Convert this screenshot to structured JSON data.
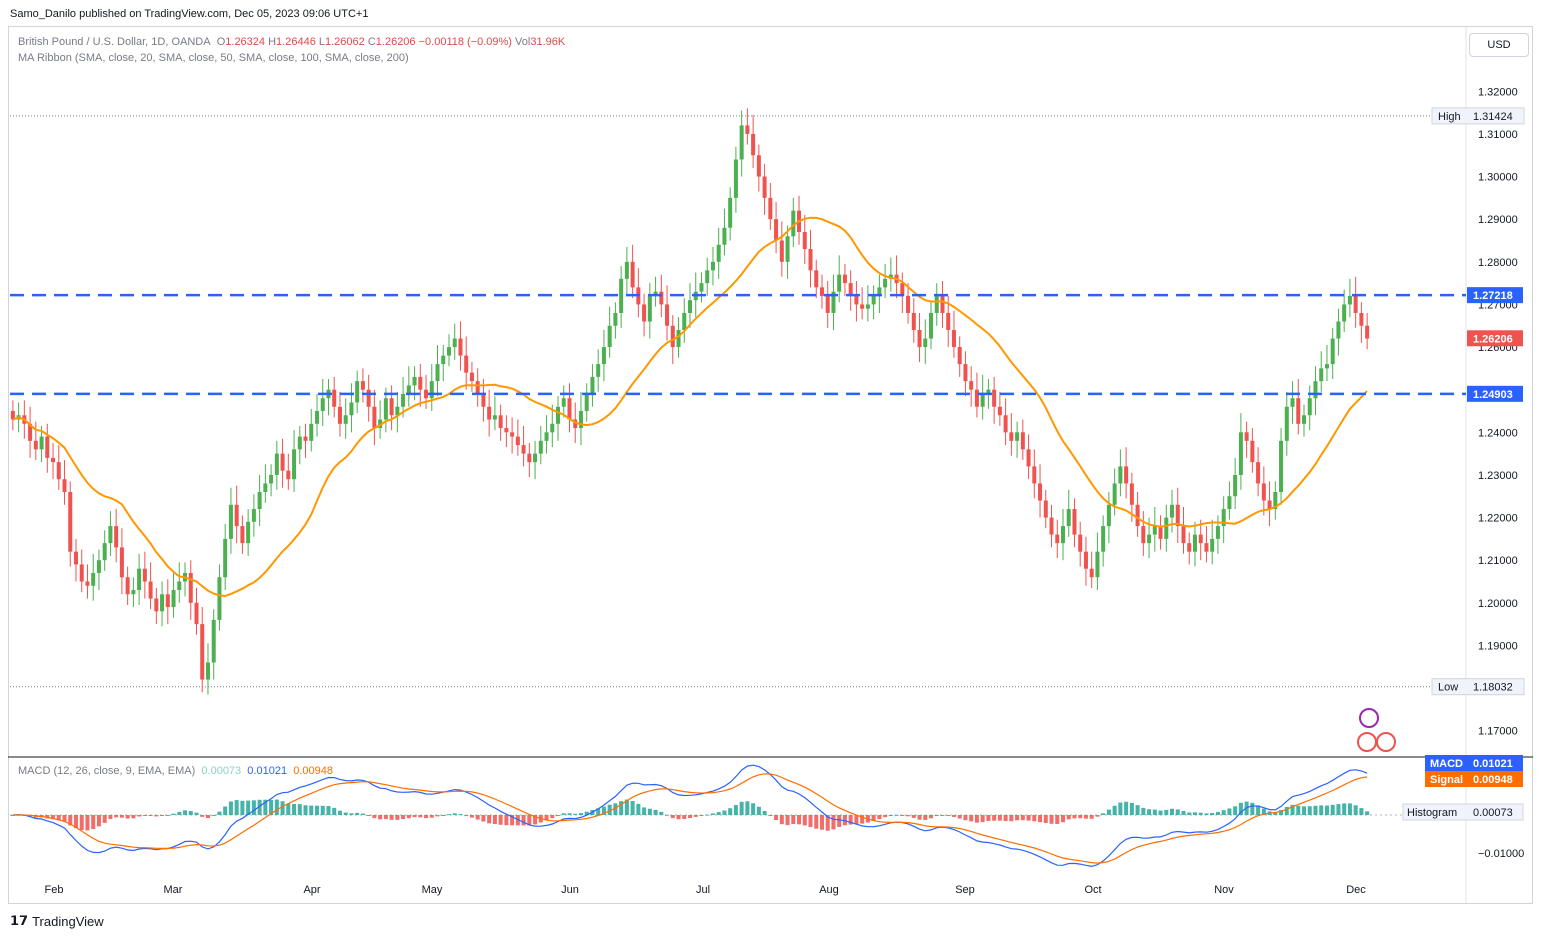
{
  "header": {
    "published": "Samo_Danilo published on TradingView.com, Dec 05, 2023 09:06 UTC+1"
  },
  "legend": {
    "symbol": "British Pound / U.S. Dollar, 1D, OANDA",
    "o_label": "O",
    "o": "1.26324",
    "h_label": "H",
    "h": "1.26446",
    "l_label": "L",
    "l": "1.26062",
    "c_label": "C",
    "c": "1.26206",
    "chg": "−0.00118 (−0.09%)",
    "vol_label": "Vol",
    "vol": "31.96K",
    "ma": "MA Ribbon (SMA, close, 20, SMA, close, 50, SMA, close, 100, SMA, close, 200)",
    "macd": "MACD (12, 26, close, 9, EMA, EMA)",
    "macd_hist": "0.00073",
    "macd_val": "0.01021",
    "macd_sig": "0.00948"
  },
  "currency": "USD",
  "footer": {
    "brand": "TradingView"
  },
  "colors": {
    "up": "#4caf50",
    "down": "#ef5350",
    "ma": "#ff9800",
    "macd": "#2962ff",
    "signal": "#ff6d00",
    "level": "#2962ff",
    "last": "#ef5350",
    "hist_up": "#26a69a",
    "hist_down": "#ef5350"
  },
  "chart_data": {
    "type": "line",
    "price_axis": {
      "ticks": [
        "1.32000",
        "1.31000",
        "1.30000",
        "1.29000",
        "1.28000",
        "1.27000",
        "1.26000",
        "1.24000",
        "1.23000",
        "1.22000",
        "1.21000",
        "1.20000",
        "1.19000",
        "1.17000"
      ],
      "ylim": [
        1.165,
        1.325
      ]
    },
    "months": [
      "Feb",
      "Mar",
      "Apr",
      "May",
      "Jun",
      "Jul",
      "Aug",
      "Sep",
      "Oct",
      "Nov",
      "Dec"
    ],
    "levels": [
      {
        "label": "High",
        "value": "1.31424"
      },
      {
        "label": "Low",
        "value": "1.18032"
      }
    ],
    "resistance": "1.27218",
    "support": "1.24903",
    "last_price": "1.26206",
    "macd_axis": {
      "tick": "−0.01000"
    },
    "macd_labels": {
      "macd": "MACD",
      "macd_value": "0.01021",
      "signal": "Signal",
      "signal_value": "0.00948",
      "histogram": "Histogram",
      "histogram_value": "0.00073"
    },
    "closes": [
      1.243,
      1.244,
      1.242,
      1.238,
      1.236,
      1.239,
      1.234,
      1.233,
      1.229,
      1.226,
      1.212,
      1.209,
      1.205,
      1.204,
      1.207,
      1.21,
      1.214,
      1.218,
      1.213,
      1.206,
      1.202,
      1.203,
      1.208,
      1.205,
      1.201,
      1.198,
      1.202,
      1.199,
      1.203,
      1.205,
      1.207,
      1.2,
      1.195,
      1.182,
      1.186,
      1.196,
      1.206,
      1.215,
      1.223,
      1.218,
      1.214,
      1.219,
      1.222,
      1.226,
      1.228,
      1.23,
      1.235,
      1.231,
      1.229,
      1.236,
      1.239,
      1.238,
      1.242,
      1.245,
      1.248,
      1.25,
      1.246,
      1.242,
      1.244,
      1.247,
      1.252,
      1.25,
      1.246,
      1.241,
      1.243,
      1.248,
      1.244,
      1.246,
      1.249,
      1.251,
      1.253,
      1.25,
      1.248,
      1.252,
      1.256,
      1.258,
      1.26,
      1.262,
      1.258,
      1.254,
      1.252,
      1.249,
      1.246,
      1.243,
      1.244,
      1.241,
      1.24,
      1.239,
      1.237,
      1.235,
      1.233,
      1.235,
      1.238,
      1.24,
      1.242,
      1.246,
      1.248,
      1.243,
      1.241,
      1.245,
      1.249,
      1.253,
      1.256,
      1.26,
      1.265,
      1.268,
      1.276,
      1.28,
      1.274,
      1.27,
      1.266,
      1.272,
      1.273,
      1.27,
      1.265,
      1.26,
      1.264,
      1.268,
      1.271,
      1.273,
      1.275,
      1.278,
      1.28,
      1.284,
      1.288,
      1.295,
      1.304,
      1.312,
      1.31,
      1.305,
      1.3,
      1.295,
      1.29,
      1.285,
      1.28,
      1.286,
      1.292,
      1.287,
      1.283,
      1.278,
      1.274,
      1.272,
      1.268,
      1.273,
      1.277,
      1.275,
      1.272,
      1.27,
      1.269,
      1.27,
      1.272,
      1.274,
      1.276,
      1.277,
      1.275,
      1.272,
      1.268,
      1.264,
      1.26,
      1.262,
      1.268,
      1.272,
      1.268,
      1.264,
      1.26,
      1.256,
      1.252,
      1.25,
      1.246,
      1.249,
      1.25,
      1.246,
      1.244,
      1.24,
      1.238,
      1.24,
      1.236,
      1.232,
      1.228,
      1.224,
      1.22,
      1.216,
      1.214,
      1.218,
      1.222,
      1.216,
      1.212,
      1.208,
      1.206,
      1.212,
      1.218,
      1.223,
      1.228,
      1.232,
      1.228,
      1.223,
      1.218,
      1.214,
      1.216,
      1.218,
      1.215,
      1.22,
      1.223,
      1.218,
      1.214,
      1.212,
      1.216,
      1.214,
      1.212,
      1.215,
      1.218,
      1.222,
      1.225,
      1.23,
      1.24,
      1.238,
      1.233,
      1.228,
      1.224,
      1.222,
      1.226,
      1.238,
      1.246,
      1.248,
      1.242,
      1.244,
      1.248,
      1.252,
      1.255,
      1.256,
      1.262,
      1.266,
      1.27,
      1.272,
      1.268,
      1.265,
      1.262
    ]
  }
}
